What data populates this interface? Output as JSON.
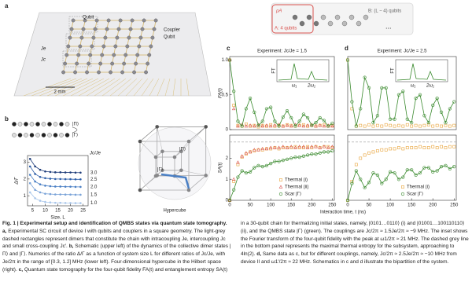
{
  "figure": {
    "panel_letters": [
      "a",
      "b",
      "c",
      "d"
    ],
    "chip": {
      "labels": [
        "Qubit",
        "Coupler",
        "Qubit"
      ],
      "couplings": [
        "Je",
        "Jc"
      ],
      "scale": "2 mm"
    },
    "dimer_states": [
      "|Π⟩",
      "|Γ⟩"
    ],
    "hypercube": {
      "labels": [
        "|Π⟩",
        "|Γ⟩"
      ],
      "caption": "Hypercube"
    },
    "bipartition": {
      "rho": "ρA",
      "a": "A: 4 qubits",
      "b": "B: (L − 4) qubits",
      "dots": "..."
    },
    "insets": [
      {
        "ylabel": "FT",
        "peaks": [
          "ω₁",
          "2ω₁"
        ]
      },
      {
        "ylabel": "FT",
        "peaks": [
          "ω₁",
          "2ω₁"
        ]
      }
    ]
  },
  "chart_data": [
    {
      "type": "line",
      "xlabel": "Size, L",
      "ylabel": "Δ/Γ",
      "legend": "right",
      "legend_title": "Jc/Je",
      "x": [
        4,
        6,
        8,
        10,
        12,
        14,
        16,
        18,
        20,
        22,
        24
      ],
      "xlim": [
        3,
        27
      ],
      "ylim": [
        0.4,
        3.4
      ],
      "xticks": [
        5,
        10,
        15,
        20,
        25
      ],
      "yticks": [
        1,
        2,
        3
      ],
      "series": [
        {
          "name": "3.0",
          "color": "#1f3d7a",
          "marker": "dot",
          "line": true,
          "values": [
            3.2,
            2.75,
            2.55,
            2.45,
            2.42,
            2.4,
            2.4,
            2.39,
            2.39,
            2.38,
            2.38
          ]
        },
        {
          "name": "2.5",
          "color": "#2f5fa8",
          "marker": "dot",
          "line": true,
          "values": [
            2.75,
            2.3,
            2.12,
            2.05,
            2.02,
            2.0,
            2.0,
            1.99,
            1.99,
            1.98,
            1.98
          ]
        },
        {
          "name": "2.0",
          "color": "#4a7fc4",
          "marker": "dot",
          "line": true,
          "values": [
            2.25,
            1.85,
            1.68,
            1.6,
            1.57,
            1.55,
            1.55,
            1.54,
            1.54,
            1.53,
            1.53
          ]
        },
        {
          "name": "1.5",
          "color": "#7aa3d8",
          "marker": "dot",
          "line": true,
          "values": [
            1.75,
            1.35,
            1.2,
            1.12,
            1.1,
            1.08,
            1.08,
            1.07,
            1.07,
            1.06,
            1.06
          ]
        },
        {
          "name": "1.0",
          "color": "#a9c6ea",
          "marker": "dot",
          "line": true,
          "values": [
            1.2,
            0.85,
            0.7,
            0.63,
            0.6,
            0.58,
            0.58,
            0.57,
            0.57,
            0.56,
            0.56
          ]
        }
      ]
    },
    {
      "type": "scatter",
      "title": "Experiment: Jc/Je = 1.5",
      "ylabel": "FA(t)",
      "x": [
        0,
        10,
        20,
        30,
        40,
        50,
        60,
        70,
        80,
        90,
        100,
        110,
        120,
        130,
        140,
        150,
        160,
        170,
        180,
        190,
        200,
        210,
        220,
        230,
        240,
        250
      ],
      "xlim": [
        0,
        255
      ],
      "ylim": [
        0,
        1.05
      ],
      "yticks": [
        0,
        0.5,
        {
          "value": 1,
          "label": "1.0"
        }
      ],
      "series": [
        {
          "name": "Thermal (i)",
          "color": "#e8a33a",
          "marker": "square",
          "line": false,
          "values": [
            1,
            0.35,
            0.06,
            0.05,
            0.08,
            0.05,
            0.06,
            0.04,
            0.06,
            0.05,
            0.07,
            0.05,
            0.06,
            0.05,
            0.07,
            0.06,
            0.05,
            0.06,
            0.07,
            0.05,
            0.06,
            0.05,
            0.06,
            0.07,
            0.05,
            0.06
          ]
        },
        {
          "name": "Thermal (ii)",
          "color": "#d9534f",
          "marker": "triangle",
          "line": false,
          "values": [
            1,
            0.3,
            0.05,
            0.07,
            0.05,
            0.06,
            0.05,
            0.07,
            0.05,
            0.06,
            0.05,
            0.06,
            0.07,
            0.05,
            0.06,
            0.05,
            0.07,
            0.06,
            0.05,
            0.06,
            0.07,
            0.05,
            0.06,
            0.05,
            0.06,
            0.05
          ]
        },
        {
          "name": "Scar |Γ⟩",
          "color": "#3a8a2e",
          "marker": "circle",
          "line": true,
          "values": [
            1,
            0.55,
            0.12,
            0.05,
            0.3,
            0.45,
            0.25,
            0.06,
            0.12,
            0.3,
            0.32,
            0.12,
            0.05,
            0.18,
            0.27,
            0.17,
            0.05,
            0.12,
            0.22,
            0.17,
            0.06,
            0.1,
            0.17,
            0.13,
            0.05,
            0.09
          ]
        }
      ]
    },
    {
      "type": "scatter",
      "ylabel": "SA(t)",
      "xlabel": "Interaction time, t (ns)",
      "legend": "lower right",
      "hline": 2.77,
      "x": [
        0,
        10,
        20,
        30,
        40,
        50,
        60,
        70,
        80,
        90,
        100,
        110,
        120,
        130,
        140,
        150,
        160,
        170,
        180,
        190,
        200,
        210,
        220,
        230,
        240,
        250
      ],
      "xlim": [
        0,
        255
      ],
      "ylim": [
        0,
        3.1
      ],
      "xticks": [
        0,
        50,
        100,
        150,
        200,
        250
      ],
      "yticks": [
        0,
        1,
        2
      ],
      "series": [
        {
          "name": "Thermal (i)",
          "color": "#e8a33a",
          "marker": "square",
          "line": false,
          "values": [
            0,
            0.9,
            1.7,
            2.05,
            2.2,
            2.3,
            2.35,
            2.4,
            2.4,
            2.45,
            2.45,
            2.5,
            2.45,
            2.5,
            2.5,
            2.5,
            2.55,
            2.5,
            2.5,
            2.55,
            2.5,
            2.55,
            2.5,
            2.55,
            2.55,
            2.5
          ]
        },
        {
          "name": "Thermal (ii)",
          "color": "#d9534f",
          "marker": "triangle",
          "line": false,
          "values": [
            0,
            1.0,
            1.8,
            2.1,
            2.25,
            2.3,
            2.4,
            2.4,
            2.45,
            2.45,
            2.5,
            2.5,
            2.5,
            2.55,
            2.5,
            2.55,
            2.5,
            2.55,
            2.55,
            2.5,
            2.55,
            2.55,
            2.5,
            2.55,
            2.5,
            2.55
          ]
        },
        {
          "name": "Scar |Γ⟩",
          "color": "#3a8a2e",
          "marker": "circle",
          "line": true,
          "values": [
            0,
            0.5,
            1.1,
            1.4,
            1.3,
            1.35,
            1.55,
            1.65,
            1.6,
            1.65,
            1.75,
            1.85,
            1.85,
            1.9,
            1.95,
            2.0,
            2.05,
            2.05,
            2.1,
            2.15,
            2.2,
            2.2,
            2.25,
            2.3,
            2.3,
            2.35
          ]
        }
      ]
    },
    {
      "type": "scatter",
      "title": "Experiment: Jc/Je = 2.5",
      "x": [
        0,
        10,
        20,
        30,
        40,
        50,
        60,
        70,
        80,
        90,
        100,
        110,
        120,
        130,
        140,
        150,
        160,
        170,
        180,
        190,
        200,
        210,
        220,
        230,
        240,
        250
      ],
      "xlim": [
        0,
        255
      ],
      "ylim": [
        0,
        1.05
      ],
      "series": [
        {
          "name": "Thermal (i)",
          "color": "#e8a33a",
          "marker": "square",
          "line": false,
          "values": [
            1,
            0.3,
            0.05,
            0.06,
            0.05,
            0.07,
            0.05,
            0.06,
            0.05,
            0.07,
            0.06,
            0.05,
            0.06,
            0.05,
            0.07,
            0.05,
            0.06,
            0.05,
            0.06,
            0.07,
            0.05,
            0.06,
            0.05,
            0.06,
            0.05,
            0.06
          ]
        },
        {
          "name": "Scar |Γ⟩",
          "color": "#3a8a2e",
          "marker": "circle",
          "line": true,
          "values": [
            1,
            0.4,
            0.05,
            0.3,
            0.75,
            0.6,
            0.1,
            0.2,
            0.6,
            0.6,
            0.15,
            0.15,
            0.5,
            0.55,
            0.15,
            0.1,
            0.45,
            0.5,
            0.2,
            0.1,
            0.35,
            0.45,
            0.25,
            0.1,
            0.3,
            0.4
          ]
        }
      ]
    },
    {
      "type": "scatter",
      "legend": "lower right",
      "hline": 2.77,
      "x": [
        0,
        10,
        20,
        30,
        40,
        50,
        60,
        70,
        80,
        90,
        100,
        110,
        120,
        130,
        140,
        150,
        160,
        170,
        180,
        190,
        200,
        210,
        220,
        230,
        240,
        250
      ],
      "xlim": [
        0,
        255
      ],
      "ylim": [
        0,
        3.1
      ],
      "xticks": [
        0,
        50,
        100,
        150,
        200,
        250
      ],
      "series": [
        {
          "name": "Thermal (i)",
          "color": "#e8a33a",
          "marker": "square",
          "line": false,
          "values": [
            0,
            0.9,
            1.7,
            2.0,
            2.15,
            2.25,
            2.3,
            2.35,
            2.4,
            2.4,
            2.45,
            2.45,
            2.5,
            2.45,
            2.5,
            2.5,
            2.5,
            2.55,
            2.5,
            2.5,
            2.55,
            2.5,
            2.55,
            2.5,
            2.55,
            2.55
          ]
        },
        {
          "name": "Scar |Γ⟩",
          "color": "#3a8a2e",
          "marker": "circle",
          "line": true,
          "values": [
            0,
            0.8,
            1.4,
            1.0,
            0.6,
            0.85,
            1.3,
            1.2,
            0.8,
            1.0,
            1.35,
            1.3,
            1.0,
            1.1,
            1.45,
            1.45,
            1.2,
            1.3,
            1.55,
            1.55,
            1.35,
            1.4,
            1.6,
            1.65,
            1.5,
            1.6
          ]
        }
      ]
    }
  ],
  "caption": {
    "title": "Fig. 1 | Experimental setup and identification of QMBS states via quantum state tomography.",
    "parts": [
      {
        "label": "a,",
        "text": "Experimental SC circuit of device I with qubits and couplers in a square geometry. The light-grey dashed rectangles represent dimers that constitute the chain with intracoupling Je, intercoupling Jc and small cross-coupling Jc′."
      },
      {
        "label": "b,",
        "text": "Schematic (upper left) of the dynamics of the collective dimer states |Π⟩ and |Γ⟩. Numerics of the ratio Δ/Γ as a function of system size L for different ratios of Jc/Je, with Je/2π in the range of [0.3, 1.2] MHz (lower left). Four-dimensional hypercube in the Hilbert space (right)."
      },
      {
        "label": "c,",
        "text": "Quantum state tomography for the four-qubit fidelity FA(t) and entanglement entropy SA(t) in a 30-qubit chain for thermalizing initial states, namely, |0101…0110⟩ (i) and |01001…100110110⟩ (ii), and the QMBS state |Γ⟩ (green). The couplings are Jc/2π ≈ 1.5Je/2π ≈ −9 MHz. The inset shows the Fourier transform of the four-qubit fidelity with the peak at ω1/2π ≈ 21 MHz. The dashed grey line in the bottom panel represents the maximal thermal entropy for the subsystem, approaching to 4ln(2)."
      },
      {
        "label": "d,",
        "text": "Same data as c, but for different couplings, namely, Jc/2π ≈ 2.5Je/2π ≈ −10 MHz from device II and ω1′/2π ≈ 22 MHz. Schematics in c and d illustrate the bipartition of the system."
      }
    ]
  }
}
